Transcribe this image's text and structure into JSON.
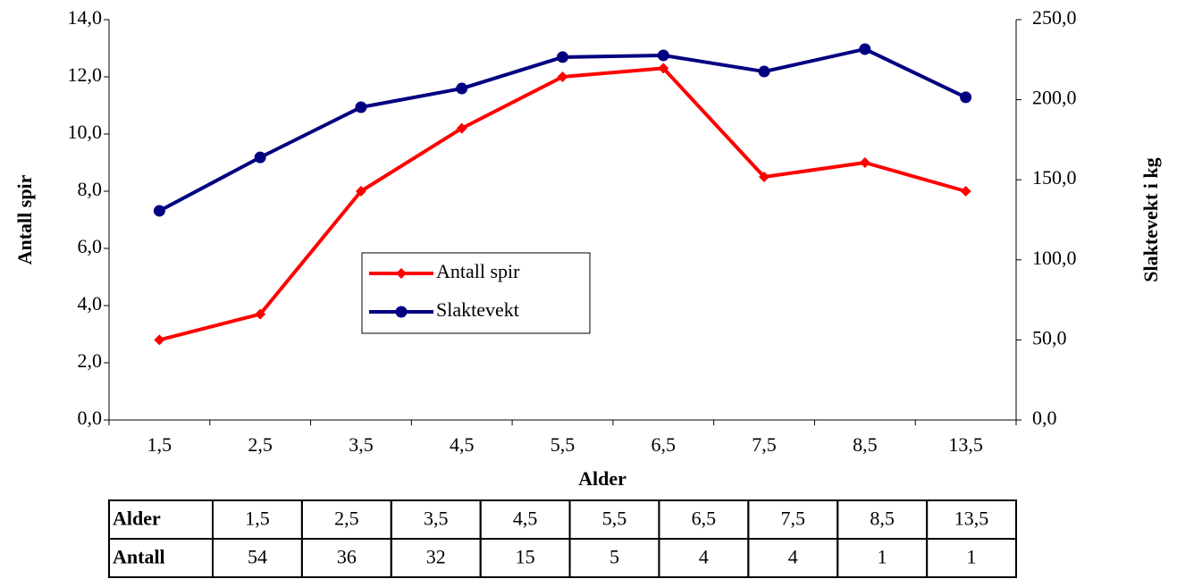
{
  "chart_data": {
    "type": "line",
    "categories": [
      "1,5",
      "2,5",
      "3,5",
      "4,5",
      "5,5",
      "6,5",
      "7,5",
      "8,5",
      "13,5"
    ],
    "x_label": "Alder",
    "y_label": "Antall spir",
    "y2_label": "Slaktevekt i kg",
    "series": [
      {
        "name": "Antall spir",
        "color": "#ff0000",
        "marker": "diamond",
        "values": [
          2.8,
          3.7,
          8.0,
          10.2,
          12.0,
          12.3,
          8.5,
          9.0,
          8.0
        ]
      },
      {
        "name": "Slaktevekt",
        "color": "#000080",
        "marker": "circle",
        "axis": "y2",
        "values": [
          130.6,
          164.0,
          195.3,
          207.0,
          226.6,
          227.7,
          217.6,
          231.6,
          201.5
        ]
      }
    ],
    "ylim": [
      0,
      14
    ],
    "yticks": [
      {
        "value": 0,
        "label": "0,0"
      },
      {
        "value": 2,
        "label": "2,0"
      },
      {
        "value": 4,
        "label": "4,0"
      },
      {
        "value": 6,
        "label": "6,0"
      },
      {
        "value": 8,
        "label": "8,0"
      },
      {
        "value": 10,
        "label": "10,0"
      },
      {
        "value": 12,
        "label": "12,0"
      },
      {
        "value": 14,
        "label": "14,0"
      }
    ],
    "y2lim": [
      0,
      250
    ],
    "y2ticks": [
      {
        "value": 0,
        "label": "0,0"
      },
      {
        "value": 50,
        "label": "50,0"
      },
      {
        "value": 100,
        "label": "100,0"
      },
      {
        "value": 150,
        "label": "150,0"
      },
      {
        "value": 200,
        "label": "200,0"
      },
      {
        "value": 250,
        "label": "250,0"
      }
    ],
    "grid": false
  },
  "table": {
    "rows": [
      [
        "Alder",
        "1,5",
        "2,5",
        "3,5",
        "4,5",
        "5,5",
        "6,5",
        "7,5",
        "8,5",
        "13,5"
      ],
      [
        "Antall",
        "54",
        "36",
        "32",
        "15",
        "5",
        "4",
        "4",
        "1",
        "1"
      ]
    ]
  }
}
